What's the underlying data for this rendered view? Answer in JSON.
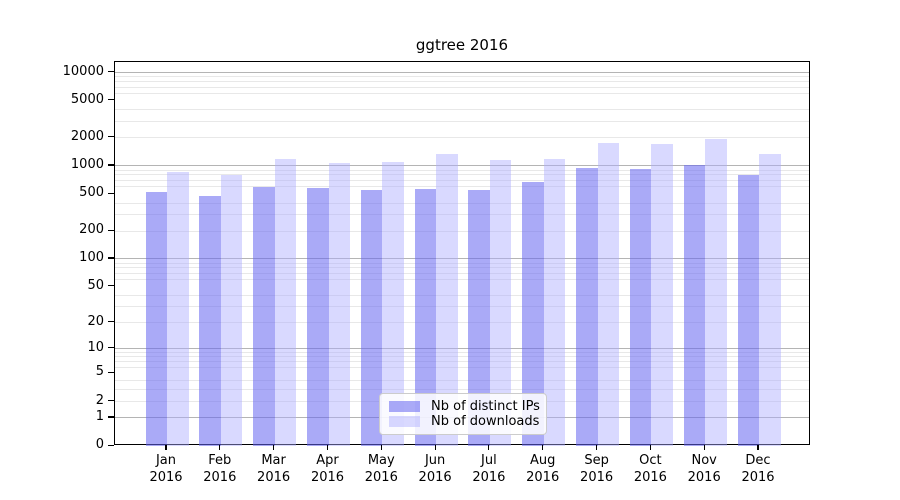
{
  "chart_data": {
    "type": "bar",
    "title": "ggtree 2016",
    "categories": [
      "Jan",
      "Feb",
      "Mar",
      "Apr",
      "May",
      "Jun",
      "Jul",
      "Aug",
      "Sep",
      "Oct",
      "Nov",
      "Dec"
    ],
    "category_year": "2016",
    "series": [
      {
        "name": "Nb of distinct IPs",
        "color_base": "#6464f0",
        "color_rgba": "rgba(100,100,240,0.55)",
        "values": [
          515,
          470,
          590,
          580,
          550,
          560,
          545,
          670,
          935,
          925,
          1020,
          790
        ]
      },
      {
        "name": "Nb of downloads",
        "color_base": "#aaaaff",
        "color_rgba": "rgba(170,170,255,0.45)",
        "values": [
          850,
          795,
          1180,
          1075,
          1090,
          1320,
          1140,
          1185,
          1745,
          1690,
          1930,
          1330
        ]
      }
    ],
    "yscale": "log1p",
    "yticks": [
      0,
      1,
      2,
      5,
      10,
      20,
      50,
      100,
      200,
      500,
      1000,
      2000,
      5000,
      10000
    ],
    "grid_major_values": [
      1,
      10,
      100,
      1000,
      10000
    ],
    "grid_minor_subs": [
      2,
      3,
      4,
      6,
      7,
      8,
      9
    ],
    "grid_major_color": "#b4b4b4",
    "grid_minor_color": "#e8e8e8",
    "ylim": [
      0,
      12600
    ],
    "grid": "horizontal, major and minor",
    "legend_position": "lower center"
  }
}
